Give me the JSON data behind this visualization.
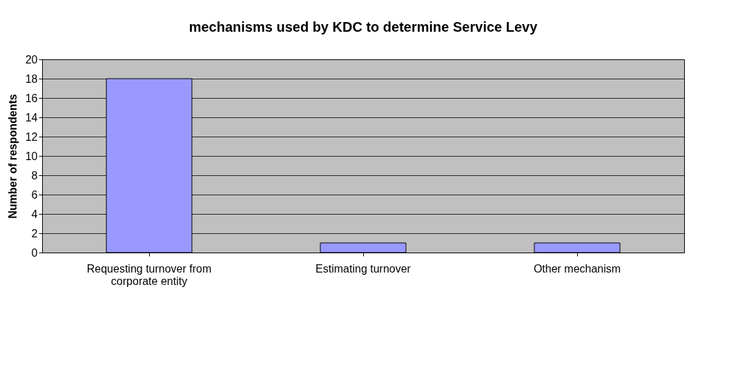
{
  "chart_data": {
    "type": "bar",
    "title": "mechanisms  used by KDC to determine Service Levy",
    "ylabel": "Number of respondents",
    "categories": [
      "Requesting  turnover from corporate entity",
      "Estimating  turnover",
      "Other mechanism"
    ],
    "values": [
      18,
      1,
      1
    ],
    "color": "#9999ff",
    "ylim": [
      0,
      20
    ],
    "yticks": [
      0,
      2,
      4,
      6,
      8,
      10,
      12,
      14,
      16,
      18,
      20
    ],
    "grid": "y"
  }
}
